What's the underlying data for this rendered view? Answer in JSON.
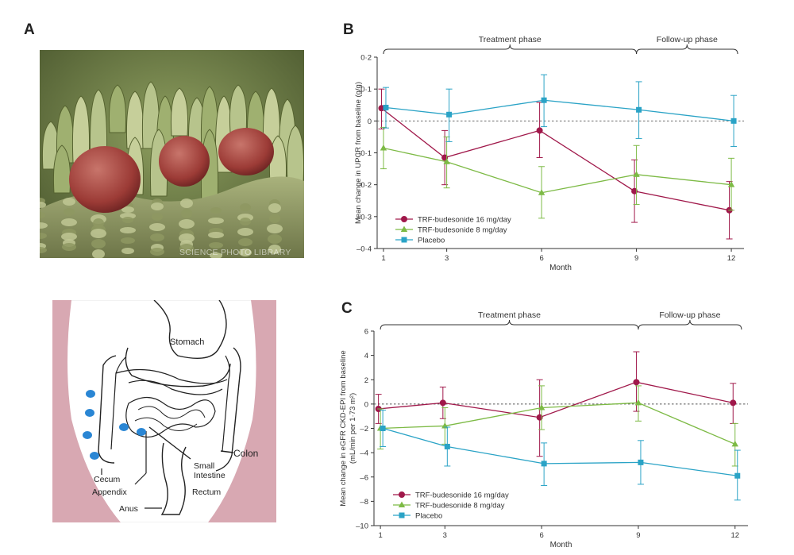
{
  "panel_labels": {
    "a": "A",
    "b": "B",
    "c": "C"
  },
  "micrograph": {
    "watermark": "SCIENCE PHOTO LIBRARY"
  },
  "anatomy": {
    "labels": {
      "stomach": "Stomach",
      "colon": "Colon",
      "small_intestine_1": "Small",
      "small_intestine_2": "Intestine",
      "cecum": "Cecum",
      "appendix": "Appendix",
      "rectum": "Rectum",
      "anus": "Anus"
    },
    "colors": {
      "body_wall": "#d8a8b2",
      "dot": "#2a86d4"
    }
  },
  "chart_data": [
    {
      "id": "B",
      "type": "line",
      "phases": [
        {
          "label": "Treatment phase",
          "x_from": 1,
          "x_to": 9
        },
        {
          "label": "Follow-up phase",
          "x_from": 9,
          "x_to": 12.2
        }
      ],
      "xlabel": "Month",
      "ylabel": "Mean change in UPCR from baseline (g/g)",
      "x_ticks": [
        1,
        3,
        6,
        9,
        12
      ],
      "x_range": [
        0.8,
        12.4
      ],
      "y_ticks": [
        0.2,
        0.1,
        0,
        -0.1,
        -0.2,
        -0.3,
        -0.4
      ],
      "y_tick_labels": [
        "0·2",
        "0·1",
        "0",
        "–0·1",
        "–0·2",
        "–0·3",
        "–0·4"
      ],
      "ylim": [
        -0.4,
        0.2
      ],
      "reference_line": 0,
      "legend_position": "bottom-left",
      "series": [
        {
          "name": "TRF-budesonide 16 mg/day",
          "color": "#a0184a",
          "marker": "circle",
          "x": [
            1,
            3,
            6,
            9,
            12
          ],
          "y": [
            0.04,
            -0.115,
            -0.03,
            -0.22,
            -0.28
          ],
          "err_low": [
            -0.025,
            -0.2,
            -0.115,
            -0.318,
            -0.37
          ],
          "err_high": [
            0.1,
            -0.03,
            0.058,
            -0.122,
            -0.19
          ]
        },
        {
          "name": "TRF-budesonide 8 mg/day",
          "color": "#7dba45",
          "marker": "triangle",
          "x": [
            1,
            3,
            6,
            9,
            12
          ],
          "y": [
            -0.085,
            -0.128,
            -0.225,
            -0.168,
            -0.2
          ],
          "err_low": [
            -0.15,
            -0.21,
            -0.305,
            -0.262,
            -0.28
          ],
          "err_high": [
            -0.02,
            -0.05,
            -0.143,
            -0.077,
            -0.117
          ]
        },
        {
          "name": "Placebo",
          "color": "#2aa3c6",
          "marker": "square",
          "x": [
            1,
            3,
            6,
            9,
            12
          ],
          "y": [
            0.042,
            0.02,
            0.065,
            0.035,
            0.0
          ],
          "err_low": [
            -0.022,
            -0.065,
            -0.018,
            -0.055,
            -0.08
          ],
          "err_high": [
            0.105,
            0.1,
            0.145,
            0.123,
            0.08
          ]
        }
      ]
    },
    {
      "id": "C",
      "type": "line",
      "phases": [
        {
          "label": "Treatment phase",
          "x_from": 1,
          "x_to": 9
        },
        {
          "label": "Follow-up phase",
          "x_from": 9,
          "x_to": 12.2
        }
      ],
      "xlabel": "Month",
      "ylabel_line1": "Mean change in eGFR CKD-EPI from baseline",
      "ylabel_line2": "(mL/min per 1·73 m²)",
      "x_ticks": [
        1,
        3,
        6,
        9,
        12
      ],
      "x_range": [
        0.8,
        12.4
      ],
      "y_ticks": [
        6,
        4,
        2,
        0,
        -2,
        -4,
        -6,
        -8,
        -10
      ],
      "y_tick_labels": [
        "6",
        "4",
        "2",
        "0",
        "–2",
        "–4",
        "–6",
        "–8",
        "–10"
      ],
      "ylim": [
        -10,
        6
      ],
      "reference_line": 0,
      "legend_position": "bottom-left",
      "series": [
        {
          "name": "TRF-budesonide 16 mg/day",
          "color": "#a0184a",
          "marker": "circle",
          "x": [
            1,
            3,
            6,
            9,
            12
          ],
          "y": [
            -0.4,
            0.1,
            -1.1,
            1.8,
            0.1
          ],
          "err_low": [
            -1.6,
            -1.2,
            -4.3,
            -0.6,
            -1.6
          ],
          "err_high": [
            0.8,
            1.4,
            2.0,
            4.3,
            1.7
          ]
        },
        {
          "name": "TRF-budesonide 8 mg/day",
          "color": "#7dba45",
          "marker": "triangle",
          "x": [
            1,
            3,
            6,
            9,
            12
          ],
          "y": [
            -2.0,
            -1.8,
            -0.3,
            0.1,
            -3.3
          ],
          "err_low": [
            -3.7,
            -3.3,
            -2.1,
            -1.4,
            -5.1
          ],
          "err_high": [
            -0.4,
            -0.3,
            1.5,
            1.5,
            -1.6
          ]
        },
        {
          "name": "Placebo",
          "color": "#2aa3c6",
          "marker": "square",
          "x": [
            1,
            3,
            6,
            9,
            12
          ],
          "y": [
            -2.0,
            -3.5,
            -4.9,
            -4.8,
            -5.9
          ],
          "err_low": [
            -3.5,
            -5.1,
            -6.7,
            -6.6,
            -7.9
          ],
          "err_high": [
            -0.5,
            -1.9,
            -3.2,
            -3.0,
            -3.8
          ]
        }
      ]
    }
  ]
}
